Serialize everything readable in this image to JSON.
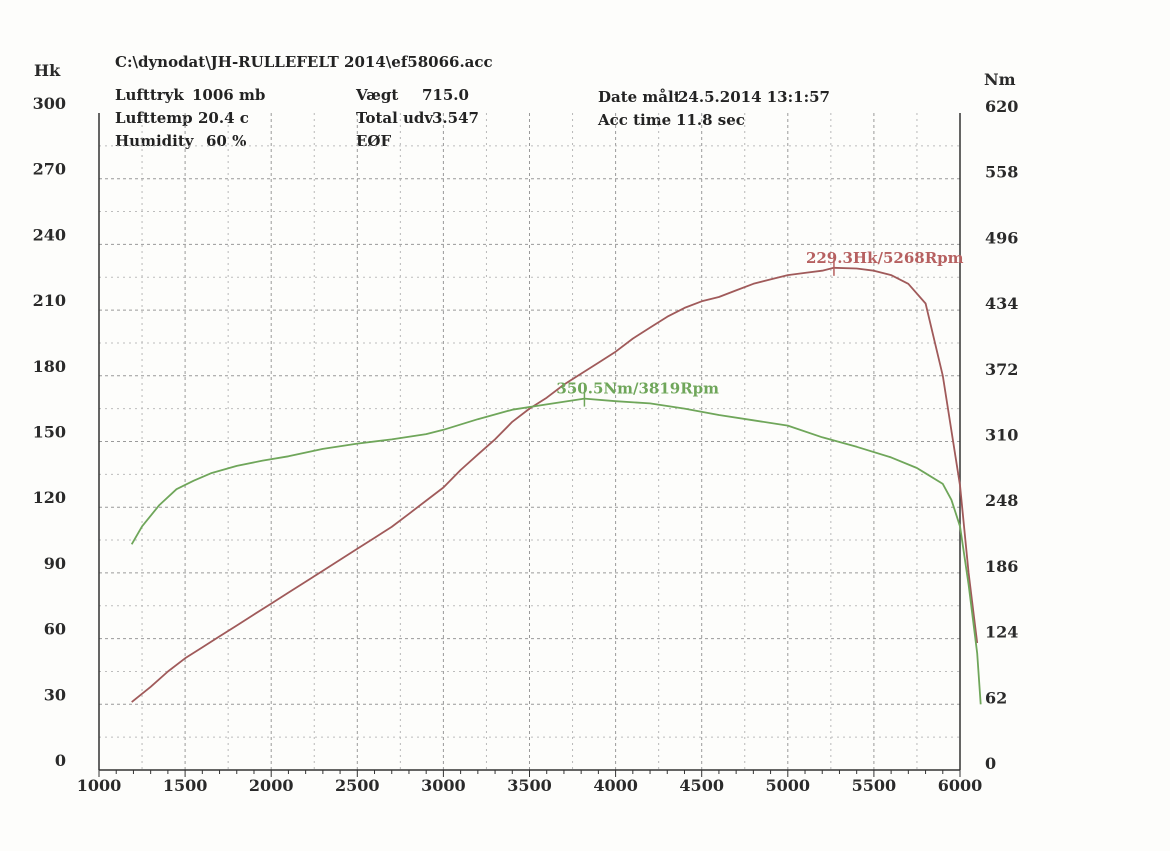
{
  "header": {
    "file_path": "C:\\dynodat\\JH-RULLEFELT 2014\\ef58066.acc",
    "air_pressure_label": "Lufttryk",
    "air_pressure_value": "1006 mb",
    "air_temp_label": "Lufttemp",
    "air_temp_value": "20.4 c",
    "humidity_label": "Humidity",
    "humidity_value": "60 %",
    "weight_label": "Vægt",
    "weight_value": "715.0",
    "total_ratio_label": "Total udv",
    "total_ratio_value": "3.547",
    "mode_label": "EØF",
    "date_label": "Date målt",
    "date_value": "24.5.2014 13:1:57",
    "acc_time_label": "Acc time",
    "acc_time_value": "11.8 sec"
  },
  "chart_data": {
    "type": "line",
    "title": "",
    "xlabel": "",
    "ylabel_left": "Hk",
    "ylabel_right": "Nm",
    "xlim": [
      1000,
      6000
    ],
    "ylim_left": [
      0,
      300
    ],
    "ylim_right": [
      0,
      620
    ],
    "x_ticks": [
      1000,
      1500,
      2000,
      2500,
      3000,
      3500,
      4000,
      4500,
      5000,
      5500,
      6000
    ],
    "y_left_ticks": [
      0,
      30,
      60,
      90,
      120,
      150,
      180,
      210,
      240,
      270,
      300
    ],
    "y_right_ticks": [
      0,
      62,
      124,
      186,
      248,
      310,
      372,
      434,
      496,
      558,
      620
    ],
    "grid": true,
    "series": [
      {
        "name": "Power (Hk)",
        "axis": "left",
        "color": "#a05a5a",
        "x": [
          1190,
          1300,
          1400,
          1500,
          1600,
          1700,
          1800,
          1900,
          2000,
          2100,
          2200,
          2300,
          2400,
          2500,
          2600,
          2700,
          2800,
          2900,
          3000,
          3100,
          3200,
          3300,
          3400,
          3500,
          3600,
          3700,
          3800,
          3900,
          4000,
          4100,
          4200,
          4300,
          4400,
          4500,
          4600,
          4700,
          4800,
          4900,
          5000,
          5100,
          5200,
          5268,
          5400,
          5500,
          5600,
          5700,
          5800,
          5900,
          6000,
          6050,
          6100
        ],
        "y": [
          31,
          38,
          45,
          51,
          56,
          61,
          66,
          71,
          76,
          81,
          86,
          91,
          96,
          101,
          106,
          111,
          117,
          123,
          129,
          137,
          144,
          151,
          159,
          165,
          170,
          176,
          181,
          186,
          191,
          197,
          202,
          207,
          211,
          214,
          216,
          219,
          222,
          224,
          226,
          227,
          228,
          229.3,
          229,
          228,
          226,
          222,
          213,
          180,
          130,
          90,
          58
        ]
      },
      {
        "name": "Torque (Nm)",
        "axis": "right",
        "color": "#6fa65a",
        "x": [
          1190,
          1250,
          1350,
          1450,
          1550,
          1650,
          1800,
          1950,
          2100,
          2300,
          2500,
          2700,
          2900,
          3000,
          3200,
          3400,
          3600,
          3819,
          4000,
          4200,
          4400,
          4600,
          4800,
          5000,
          5200,
          5400,
          5600,
          5750,
          5800,
          5900,
          5950,
          6000,
          6050,
          6100,
          6120
        ],
        "y": [
          213,
          230,
          250,
          265,
          273,
          280,
          287,
          292,
          296,
          303,
          308,
          312,
          317,
          321,
          331,
          340,
          345,
          350.5,
          348,
          346,
          341,
          335,
          330,
          325,
          314,
          305,
          295,
          285,
          280,
          270,
          255,
          230,
          175,
          110,
          62
        ]
      }
    ],
    "annotations": [
      {
        "text": "229.3Hk/5268Rpm",
        "x": 5268,
        "y": 229.3,
        "axis": "left",
        "color": "#b66060"
      },
      {
        "text": "350.5Nm/3819Rpm",
        "x": 3819,
        "y": 350.5,
        "axis": "right",
        "color": "#6fa65a"
      }
    ]
  }
}
